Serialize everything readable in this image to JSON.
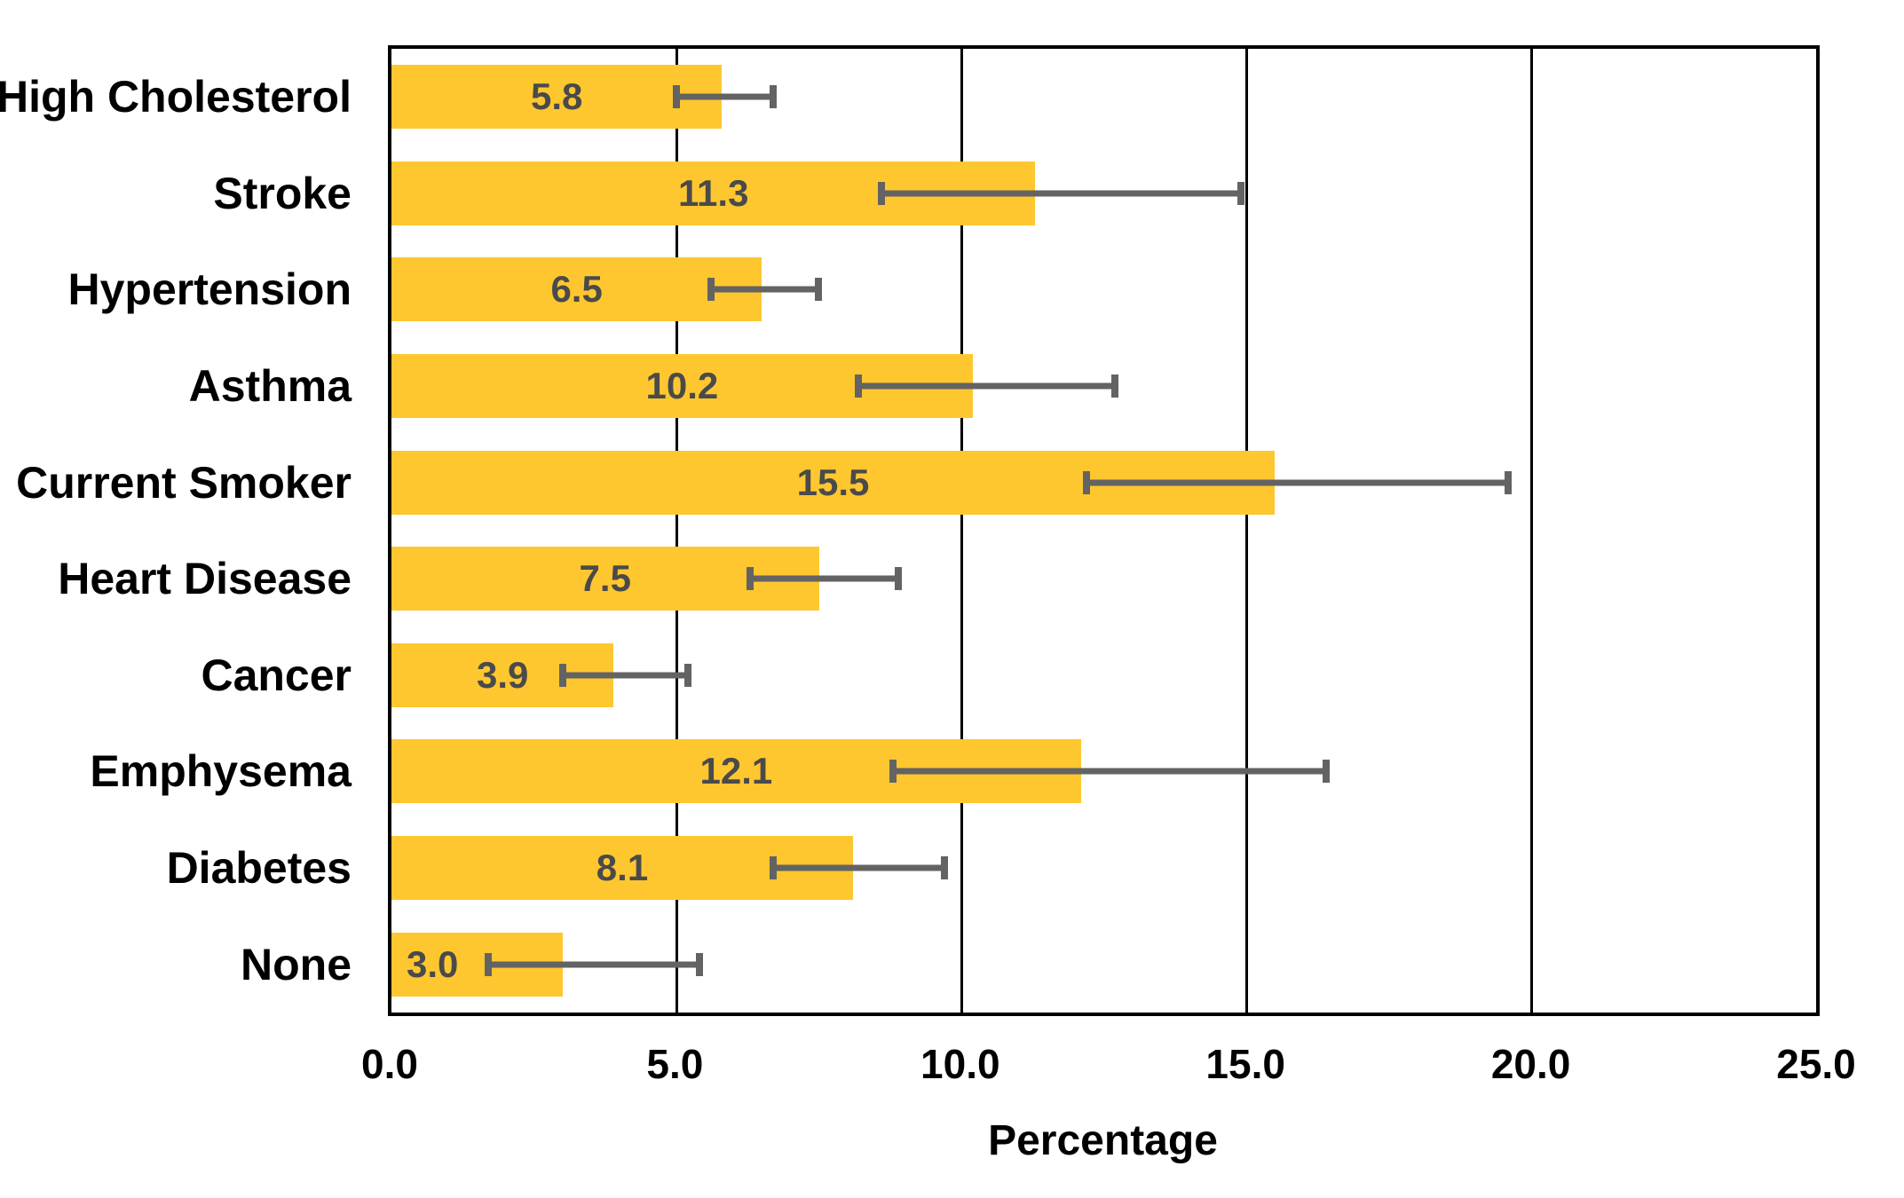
{
  "chart_data": {
    "type": "bar",
    "orientation": "horizontal",
    "title": "",
    "xlabel": "Percentage",
    "ylabel": "",
    "xlim": [
      0,
      25
    ],
    "grid": "vertical gridlines at each x tick, full plot border box",
    "legend": "none",
    "x_ticks": [
      {
        "value": 0,
        "label": "0.0"
      },
      {
        "value": 5,
        "label": "5.0"
      },
      {
        "value": 10,
        "label": "10.0"
      },
      {
        "value": 15,
        "label": "15.0"
      },
      {
        "value": 20,
        "label": "20.0"
      },
      {
        "value": 25,
        "label": "25.0"
      }
    ],
    "rows": [
      {
        "category": "High Cholesterol",
        "value": 5.8,
        "value_label": "5.8",
        "err_low": 5.0,
        "err_high": 6.7,
        "label_frac": 0.5
      },
      {
        "category": "Stroke",
        "value": 11.3,
        "value_label": "11.3",
        "err_low": 8.6,
        "err_high": 14.9,
        "label_frac": 0.5
      },
      {
        "category": "Hypertension",
        "value": 6.5,
        "value_label": "6.5",
        "err_low": 5.6,
        "err_high": 7.5,
        "label_frac": 0.5
      },
      {
        "category": "Asthma",
        "value": 10.2,
        "value_label": "10.2",
        "err_low": 8.2,
        "err_high": 12.7,
        "label_frac": 0.5
      },
      {
        "category": "Current Smoker",
        "value": 15.5,
        "value_label": "15.5",
        "err_low": 12.2,
        "err_high": 19.6,
        "label_frac": 0.5
      },
      {
        "category": "Heart Disease",
        "value": 7.5,
        "value_label": "7.5",
        "err_low": 6.3,
        "err_high": 8.9,
        "label_frac": 0.5
      },
      {
        "category": "Cancer",
        "value": 3.9,
        "value_label": "3.9",
        "err_low": 3.0,
        "err_high": 5.2,
        "label_frac": 0.5
      },
      {
        "category": "Emphysema",
        "value": 12.1,
        "value_label": "12.1",
        "err_low": 8.8,
        "err_high": 16.4,
        "label_frac": 0.5
      },
      {
        "category": "Diabetes",
        "value": 8.1,
        "value_label": "8.1",
        "err_low": 6.7,
        "err_high": 9.7,
        "label_frac": 0.5
      },
      {
        "category": "None",
        "value": 3.0,
        "value_label": "3.0",
        "err_low": 1.7,
        "err_high": 5.4,
        "label_frac": 0.24
      }
    ],
    "colors": {
      "bar": "#FEC72F",
      "error_bar": "#636363",
      "value_label": "#4a4a4a",
      "axis_text": "#000000",
      "plot_border": "#000000",
      "background": "#ffffff"
    }
  }
}
